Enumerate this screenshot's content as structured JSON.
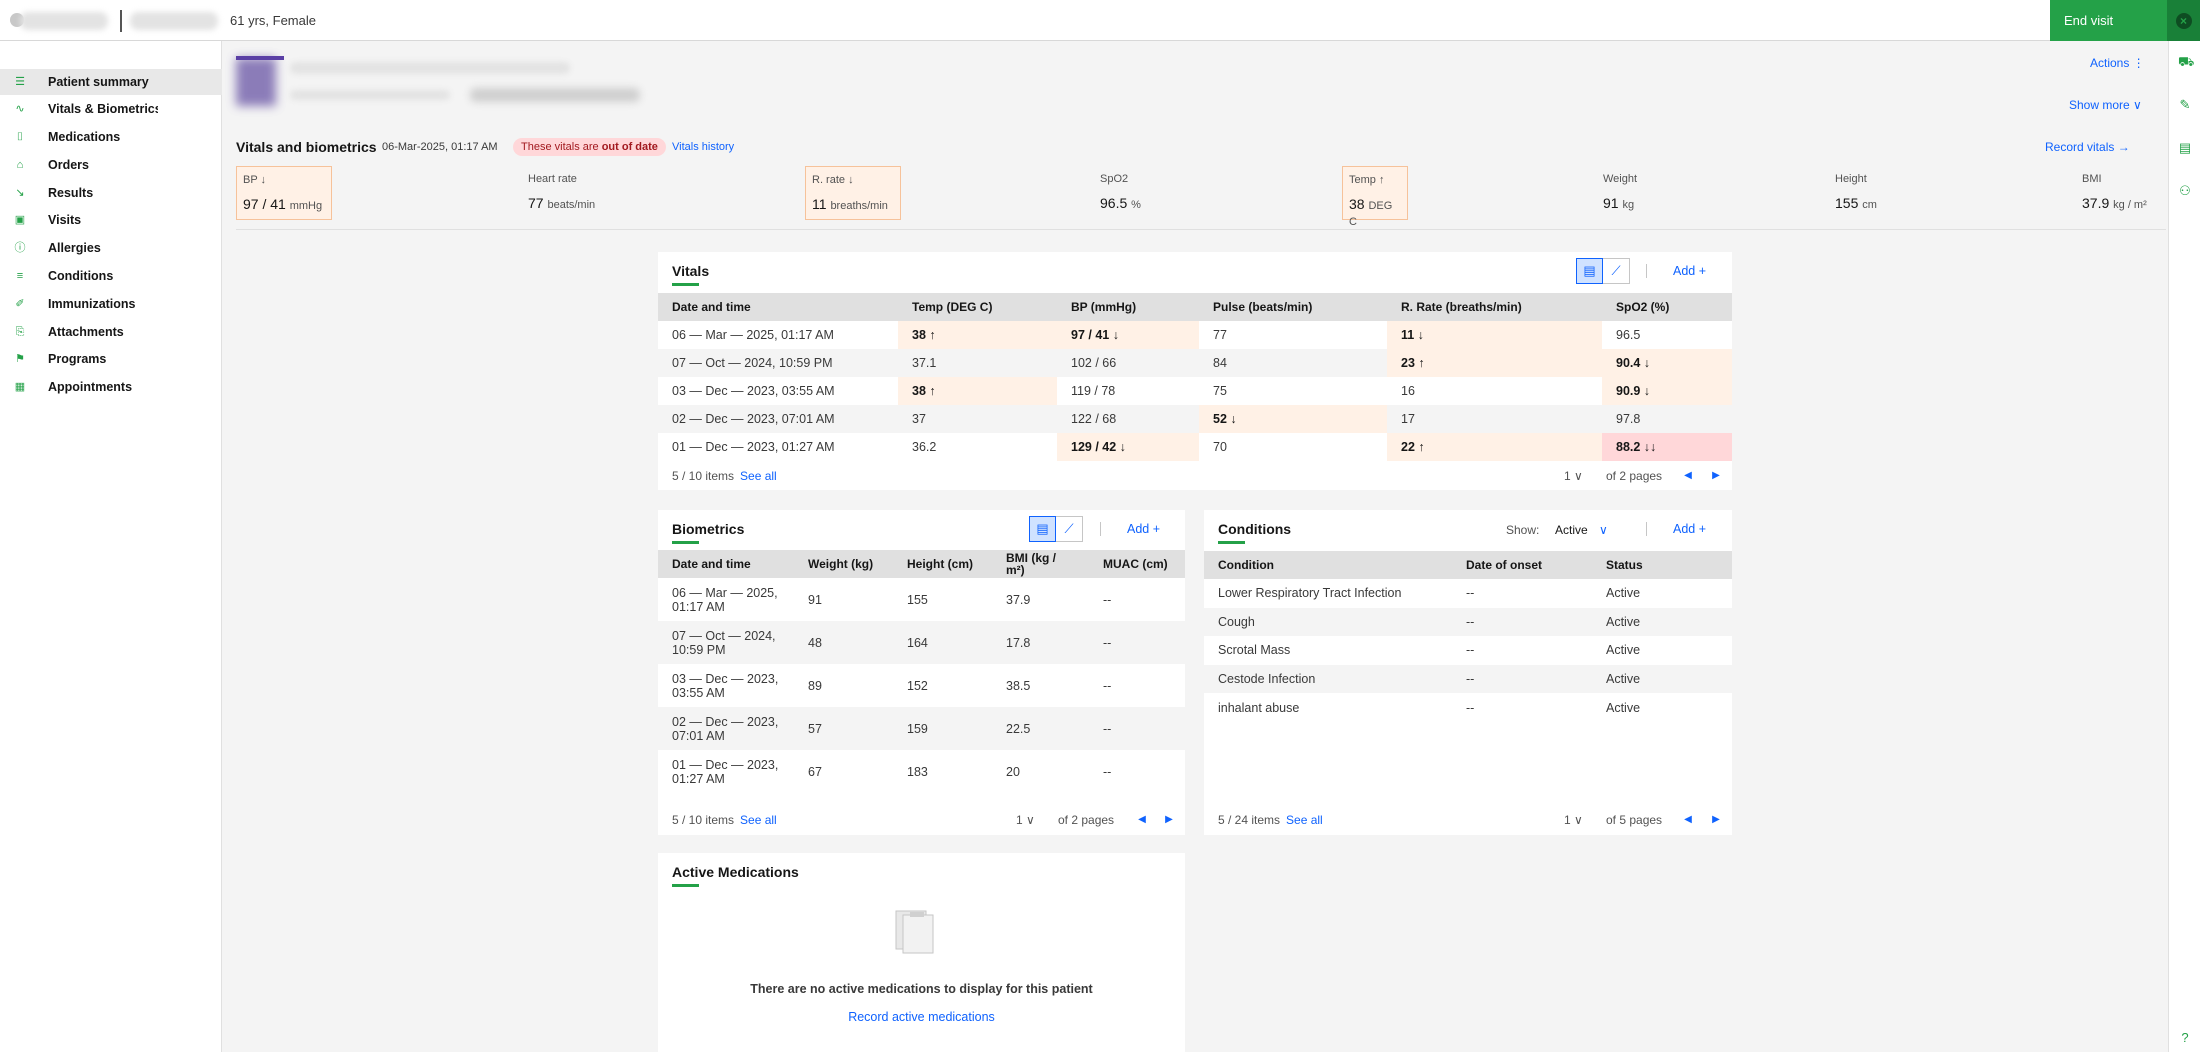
{
  "header": {
    "demographics": "61 yrs, Female",
    "end_visit": "End visit"
  },
  "sidebar": {
    "items": [
      {
        "label": "Patient summary",
        "icon": "☰"
      },
      {
        "label": "Vitals & Biometrics",
        "icon": "∿"
      },
      {
        "label": "Medications",
        "icon": "⌷"
      },
      {
        "label": "Orders",
        "icon": "⌂"
      },
      {
        "label": "Results",
        "icon": "↘"
      },
      {
        "label": "Visits",
        "icon": "▣"
      },
      {
        "label": "Allergies",
        "icon": "ⓘ"
      },
      {
        "label": "Conditions",
        "icon": "≡"
      },
      {
        "label": "Immunizations",
        "icon": "✐"
      },
      {
        "label": "Attachments",
        "icon": "⎘"
      },
      {
        "label": "Programs",
        "icon": "⚑"
      },
      {
        "label": "Appointments",
        "icon": "▦"
      }
    ]
  },
  "banner": {
    "actions": "Actions ⋮",
    "show_more": "Show more ∨"
  },
  "vitals_header": {
    "title": "Vitals and biometrics",
    "date": "06-Mar-2025, 01:17 AM",
    "tag_prefix": "These vitals are ",
    "tag_bold": "out of date",
    "history": "Vitals history",
    "record": "Record vitals →"
  },
  "vital_tiles": [
    {
      "label": "BP ↓",
      "value": "97 / 41",
      "unit": "mmHg"
    },
    {
      "label": "Heart rate",
      "value": "77",
      "unit": "beats/min"
    },
    {
      "label": "R. rate ↓",
      "value": "11",
      "unit": "breaths/min"
    },
    {
      "label": "SpO2",
      "value": "96.5",
      "unit": "%"
    },
    {
      "label": "Temp ↑",
      "value": "38",
      "unit": "DEG C"
    },
    {
      "label": "Weight",
      "value": "91",
      "unit": "kg"
    },
    {
      "label": "Height",
      "value": "155",
      "unit": "cm"
    },
    {
      "label": "BMI",
      "value": "37.9",
      "unit": "kg / m²"
    }
  ],
  "vitals_card": {
    "title": "Vitals",
    "add": "Add +",
    "columns": [
      "Date and time",
      "Temp (DEG C)",
      "BP (mmHg)",
      "Pulse (beats/min)",
      "R. Rate (breaths/min)",
      "SpO2 (%)"
    ],
    "rows": [
      [
        "06 — Mar — 2025, 01:17 AM",
        "38 ↑",
        "97 / 41 ↓",
        "77",
        "11 ↓",
        "96.5"
      ],
      [
        "07 — Oct — 2024, 10:59 PM",
        "37.1",
        "102 / 66",
        "84",
        "23 ↑",
        "90.4 ↓"
      ],
      [
        "03 — Dec — 2023, 03:55 AM",
        "38 ↑",
        "119 / 78",
        "75",
        "16",
        "90.9 ↓"
      ],
      [
        "02 — Dec — 2023, 07:01 AM",
        "37",
        "122 / 68",
        "52 ↓",
        "17",
        "97.8"
      ],
      [
        "01 — Dec — 2023, 01:27 AM",
        "36.2",
        "129 / 42 ↓",
        "70",
        "22 ↑",
        "88.2 ↓↓"
      ]
    ],
    "count": "5 / 10 items",
    "see_all": "See all",
    "page": "1",
    "of_pages": "of 2 pages"
  },
  "biometrics_card": {
    "title": "Biometrics",
    "add": "Add +",
    "columns": [
      "Date and time",
      "Weight (kg)",
      "Height (cm)",
      "BMI (kg / m²)",
      "MUAC (cm)"
    ],
    "rows": [
      [
        "06 — Mar — 2025, 01:17 AM",
        "91",
        "155",
        "37.9",
        "--"
      ],
      [
        "07 — Oct — 2024, 10:59 PM",
        "48",
        "164",
        "17.8",
        "--"
      ],
      [
        "03 — Dec — 2023, 03:55 AM",
        "89",
        "152",
        "38.5",
        "--"
      ],
      [
        "02 — Dec — 2023, 07:01 AM",
        "57",
        "159",
        "22.5",
        "--"
      ],
      [
        "01 — Dec — 2023, 01:27 AM",
        "67",
        "183",
        "20",
        "--"
      ]
    ],
    "count": "5 / 10 items",
    "see_all": "See all",
    "page": "1",
    "of_pages": "of 2 pages"
  },
  "conditions_card": {
    "title": "Conditions",
    "show_label": "Show:",
    "show_value": "Active",
    "add": "Add +",
    "columns": [
      "Condition",
      "Date of onset",
      "Status"
    ],
    "rows": [
      [
        "Lower Respiratory Tract Infection",
        "--",
        "Active"
      ],
      [
        "Cough",
        "--",
        "Active"
      ],
      [
        "Scrotal Mass",
        "--",
        "Active"
      ],
      [
        "Cestode Infection",
        "--",
        "Active"
      ],
      [
        "inhalant abuse",
        "--",
        "Active"
      ]
    ],
    "count": "5 / 24 items",
    "see_all": "See all",
    "page": "1",
    "of_pages": "of 5 pages"
  },
  "medications_card": {
    "title": "Active Medications",
    "empty": "There are no active medications to display for this patient",
    "record": "Record active medications"
  },
  "colors": {
    "accent": "#24a148",
    "link": "#0f62fe",
    "flag_bg": "#fff1e6",
    "crit_bg": "#ffd7d9"
  }
}
